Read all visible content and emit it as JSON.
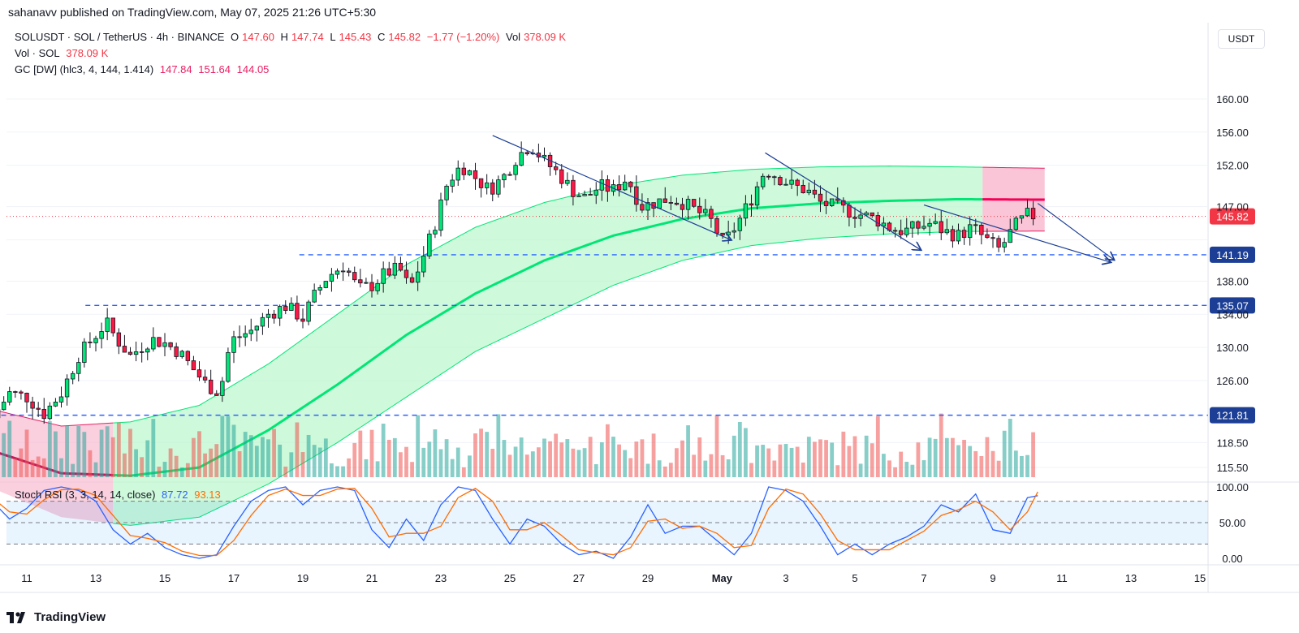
{
  "header": {
    "publisher_line": "sahanavv published on TradingView.com, May 07, 2025 21:26 UTC+5:30"
  },
  "legend": {
    "symbol": "SOLUSDT · SOL / TetherUS · 4h · BINANCE",
    "o_label": "O",
    "o": "147.60",
    "h_label": "H",
    "h": "147.74",
    "l_label": "L",
    "l": "145.43",
    "c_label": "C",
    "c": "145.82",
    "change": "−1.77 (−1.20%)",
    "vol_label": "Vol",
    "vol": "378.09 K",
    "vol_line_label": "Vol · SOL",
    "vol_line_value": "378.09 K",
    "gc_label": "GC [DW] (hlc3, 4, 144, 1.414)",
    "gc_values": [
      "147.84",
      "151.64",
      "144.05"
    ],
    "stoch_label": "Stoch RSI (3, 3, 14, 14, close)",
    "stoch_values": [
      "87.72",
      "93.13"
    ]
  },
  "price_axis_unit": "USDT",
  "branding": {
    "logo_text": "TradingView"
  },
  "colors": {
    "up": "#26a69a",
    "down": "#ef5350",
    "up_bright": "#00e676",
    "down_bright": "#ff1744",
    "band_green": "#b9f6ca",
    "band_pink": "#f8bbd0",
    "hline": "#2962ff",
    "k_line": "#2962ff",
    "d_line": "#ff6d00"
  },
  "chart_data": {
    "type": "candlestick",
    "symbol": "SOLUSDT",
    "timeframe": "4h",
    "price_axis": {
      "ticks": [
        115.5,
        118.5,
        121.81,
        126.0,
        130.0,
        134.0,
        135.07,
        138.0,
        141.19,
        145.82,
        147.0,
        152.0,
        156.0,
        160.0
      ],
      "tick_labels": [
        "115.50",
        "118.50",
        "121.81",
        "126.00",
        "130.00",
        "134.00",
        "135.07",
        "138.00",
        "141.19",
        "145.82",
        "147.00",
        "152.00",
        "156.00",
        "160.00"
      ],
      "range": [
        114.0,
        163.0
      ]
    },
    "x_axis": {
      "tick_labels": [
        "11",
        "13",
        "15",
        "17",
        "19",
        "21",
        "23",
        "25",
        "27",
        "29",
        "May",
        "3",
        "5",
        "7",
        "9",
        "11",
        "13",
        "15"
      ]
    },
    "horizontal_levels": [
      {
        "value": 141.19,
        "label": "141.19",
        "x_start": "Apr 19"
      },
      {
        "value": 135.07,
        "label": "135.07",
        "x_start": "Apr 13"
      },
      {
        "value": 121.81,
        "label": "121.81",
        "x_start": "Apr 10"
      }
    ],
    "last_price": {
      "value": 145.82,
      "label": "145.82"
    },
    "trendlines": [
      {
        "from": {
          "day": 24.5,
          "price": 155.6
        },
        "to": {
          "day": 31.4,
          "price": 143.0
        }
      },
      {
        "from": {
          "day": 32.4,
          "price": 153.5
        },
        "to": {
          "day": 36.9,
          "price": 141.8
        }
      },
      {
        "from": {
          "day": 37.0,
          "price": 147.2
        },
        "to": {
          "day": 42.4,
          "price": 140.3
        }
      }
    ],
    "close_path": [
      [
        10.0,
        121.5
      ],
      [
        10.5,
        124.5
      ],
      [
        11.0,
        124.0
      ],
      [
        11.5,
        122.0
      ],
      [
        12.0,
        124.5
      ],
      [
        12.5,
        129.0
      ],
      [
        12.9,
        131.0
      ],
      [
        13.3,
        133.0
      ],
      [
        13.6,
        131.0
      ],
      [
        14.0,
        129.0
      ],
      [
        14.3,
        130.0
      ],
      [
        14.6,
        131.0
      ],
      [
        15.0,
        130.5
      ],
      [
        15.4,
        129.5
      ],
      [
        15.8,
        127.5
      ],
      [
        16.2,
        125.5
      ],
      [
        16.6,
        124.5
      ],
      [
        16.8,
        129.0
      ],
      [
        17.0,
        131.0
      ],
      [
        17.5,
        132.0
      ],
      [
        18.0,
        134.0
      ],
      [
        18.5,
        135.0
      ],
      [
        19.0,
        133.5
      ],
      [
        19.3,
        136.0
      ],
      [
        19.7,
        138.5
      ],
      [
        20.2,
        140.0
      ],
      [
        20.6,
        137.0
      ],
      [
        21.0,
        137.5
      ],
      [
        21.4,
        139.0
      ],
      [
        21.8,
        139.5
      ],
      [
        22.1,
        137.0
      ],
      [
        22.4,
        140.0
      ],
      [
        22.8,
        144.5
      ],
      [
        23.2,
        150.0
      ],
      [
        23.6,
        152.0
      ],
      [
        24.0,
        150.5
      ],
      [
        24.4,
        149.0
      ],
      [
        24.8,
        150.5
      ],
      [
        25.2,
        153.0
      ],
      [
        25.6,
        154.5
      ],
      [
        26.0,
        152.5
      ],
      [
        26.4,
        151.0
      ],
      [
        26.8,
        149.0
      ],
      [
        27.2,
        148.0
      ],
      [
        27.6,
        149.5
      ],
      [
        28.0,
        149.0
      ],
      [
        28.4,
        150.5
      ],
      [
        28.8,
        147.0
      ],
      [
        29.2,
        147.5
      ],
      [
        29.6,
        148.0
      ],
      [
        30.0,
        147.5
      ],
      [
        30.4,
        146.5
      ],
      [
        30.8,
        145.5
      ],
      [
        31.2,
        142.5
      ],
      [
        31.6,
        145.0
      ],
      [
        32.0,
        148.0
      ],
      [
        32.4,
        151.5
      ],
      [
        32.8,
        150.5
      ],
      [
        33.2,
        149.5
      ],
      [
        33.6,
        149.0
      ],
      [
        34.0,
        147.5
      ],
      [
        34.4,
        147.0
      ],
      [
        34.8,
        146.5
      ],
      [
        35.2,
        146.0
      ],
      [
        35.6,
        145.5
      ],
      [
        36.0,
        144.5
      ],
      [
        36.4,
        144.0
      ],
      [
        36.8,
        144.5
      ],
      [
        37.2,
        145.0
      ],
      [
        37.6,
        144.0
      ],
      [
        38.0,
        143.5
      ],
      [
        38.4,
        144.5
      ],
      [
        38.8,
        143.0
      ],
      [
        39.2,
        141.8
      ],
      [
        39.6,
        144.5
      ],
      [
        40.0,
        146.0
      ],
      [
        40.3,
        145.82
      ]
    ],
    "gc_band": {
      "basis": [
        [
          10,
          117.5
        ],
        [
          12,
          114.8
        ],
        [
          14,
          114.5
        ],
        [
          16,
          115.5
        ],
        [
          18,
          120.0
        ],
        [
          20,
          125.5
        ],
        [
          22,
          131.5
        ],
        [
          24,
          136.5
        ],
        [
          26,
          140.5
        ],
        [
          28,
          143.5
        ],
        [
          30,
          145.5
        ],
        [
          32,
          146.8
        ],
        [
          34,
          147.4
        ],
        [
          36,
          147.7
        ],
        [
          38,
          147.9
        ],
        [
          40.5,
          147.84
        ]
      ],
      "upper": [
        [
          10,
          122.5
        ],
        [
          12,
          120.5
        ],
        [
          14,
          121.0
        ],
        [
          16,
          123.0
        ],
        [
          18,
          128.0
        ],
        [
          20,
          134.0
        ],
        [
          22,
          140.0
        ],
        [
          24,
          144.5
        ],
        [
          26,
          147.5
        ],
        [
          28,
          149.5
        ],
        [
          30,
          150.8
        ],
        [
          32,
          151.5
        ],
        [
          34,
          151.8
        ],
        [
          36,
          151.9
        ],
        [
          38,
          151.8
        ],
        [
          40.5,
          151.64
        ]
      ],
      "lower": [
        [
          10,
          113.0
        ],
        [
          12,
          109.5
        ],
        [
          14,
          108.5
        ],
        [
          16,
          109.5
        ],
        [
          18,
          113.5
        ],
        [
          20,
          118.5
        ],
        [
          22,
          124.0
        ],
        [
          24,
          129.5
        ],
        [
          26,
          133.5
        ],
        [
          28,
          137.5
        ],
        [
          30,
          140.5
        ],
        [
          32,
          142.3
        ],
        [
          34,
          143.2
        ],
        [
          36,
          143.7
        ],
        [
          38,
          144.0
        ],
        [
          40.5,
          144.05
        ]
      ]
    },
    "stoch_rsi": {
      "range": [
        0,
        100
      ],
      "ticks": [
        0,
        50,
        100
      ],
      "tick_labels": [
        "0.00",
        "50.00",
        "100.00"
      ],
      "band": [
        20,
        80
      ],
      "k": [
        [
          10,
          80
        ],
        [
          10.5,
          55
        ],
        [
          11,
          70
        ],
        [
          11.5,
          95
        ],
        [
          12,
          100
        ],
        [
          12.5,
          95
        ],
        [
          13,
          80
        ],
        [
          13.5,
          40
        ],
        [
          14,
          20
        ],
        [
          14.5,
          35
        ],
        [
          15,
          15
        ],
        [
          15.5,
          5
        ],
        [
          16,
          0
        ],
        [
          16.5,
          5
        ],
        [
          17,
          45
        ],
        [
          17.5,
          80
        ],
        [
          18,
          95
        ],
        [
          18.5,
          100
        ],
        [
          19,
          75
        ],
        [
          19.5,
          95
        ],
        [
          20,
          100
        ],
        [
          20.5,
          95
        ],
        [
          21,
          40
        ],
        [
          21.5,
          15
        ],
        [
          22,
          55
        ],
        [
          22.5,
          25
        ],
        [
          23,
          75
        ],
        [
          23.5,
          100
        ],
        [
          24,
          95
        ],
        [
          24.5,
          55
        ],
        [
          25,
          20
        ],
        [
          25.5,
          55
        ],
        [
          26,
          45
        ],
        [
          26.5,
          20
        ],
        [
          27,
          5
        ],
        [
          27.5,
          10
        ],
        [
          28,
          0
        ],
        [
          28.5,
          30
        ],
        [
          29,
          75
        ],
        [
          29.5,
          35
        ],
        [
          30,
          45
        ],
        [
          30.5,
          45
        ],
        [
          31,
          25
        ],
        [
          31.5,
          5
        ],
        [
          32,
          35
        ],
        [
          32.5,
          100
        ],
        [
          33,
          95
        ],
        [
          33.5,
          80
        ],
        [
          34,
          45
        ],
        [
          34.5,
          5
        ],
        [
          35,
          20
        ],
        [
          35.5,
          5
        ],
        [
          36,
          20
        ],
        [
          36.5,
          30
        ],
        [
          37,
          45
        ],
        [
          37.5,
          75
        ],
        [
          38,
          65
        ],
        [
          38.5,
          90
        ],
        [
          39,
          40
        ],
        [
          39.5,
          35
        ],
        [
          40,
          85
        ],
        [
          40.3,
          87.72
        ]
      ],
      "d": [
        [
          10,
          85
        ],
        [
          10.5,
          65
        ],
        [
          11,
          62
        ],
        [
          11.5,
          82
        ],
        [
          12,
          96
        ],
        [
          12.5,
          97
        ],
        [
          13,
          88
        ],
        [
          13.5,
          60
        ],
        [
          14,
          32
        ],
        [
          14.5,
          28
        ],
        [
          15,
          22
        ],
        [
          15.5,
          10
        ],
        [
          16,
          4
        ],
        [
          16.5,
          4
        ],
        [
          17,
          25
        ],
        [
          17.5,
          60
        ],
        [
          18,
          88
        ],
        [
          18.5,
          97
        ],
        [
          19,
          88
        ],
        [
          19.5,
          88
        ],
        [
          20,
          97
        ],
        [
          20.5,
          98
        ],
        [
          21,
          70
        ],
        [
          21.5,
          30
        ],
        [
          22,
          35
        ],
        [
          22.5,
          35
        ],
        [
          23,
          45
        ],
        [
          23.5,
          85
        ],
        [
          24,
          98
        ],
        [
          24.5,
          80
        ],
        [
          25,
          40
        ],
        [
          25.5,
          40
        ],
        [
          26,
          50
        ],
        [
          26.5,
          32
        ],
        [
          27,
          12
        ],
        [
          27.5,
          8
        ],
        [
          28,
          5
        ],
        [
          28.5,
          15
        ],
        [
          29,
          52
        ],
        [
          29.5,
          55
        ],
        [
          30,
          42
        ],
        [
          30.5,
          45
        ],
        [
          31,
          35
        ],
        [
          31.5,
          15
        ],
        [
          32,
          18
        ],
        [
          32.5,
          70
        ],
        [
          33,
          97
        ],
        [
          33.5,
          90
        ],
        [
          34,
          62
        ],
        [
          34.5,
          25
        ],
        [
          35,
          12
        ],
        [
          35.5,
          12
        ],
        [
          36,
          12
        ],
        [
          36.5,
          25
        ],
        [
          37,
          38
        ],
        [
          37.5,
          60
        ],
        [
          38,
          68
        ],
        [
          38.5,
          80
        ],
        [
          39,
          65
        ],
        [
          39.5,
          40
        ],
        [
          40,
          65
        ],
        [
          40.3,
          93.13
        ]
      ]
    },
    "series": [
      {
        "name": "Vol · SOL",
        "last": "378.09 K"
      },
      {
        "name": "GC [DW] (hlc3, 4, 144, 1.414)",
        "values": [
          147.84,
          151.64,
          144.05
        ]
      },
      {
        "name": "Stoch RSI (3, 3, 14, 14, close)",
        "values": [
          87.72,
          93.13
        ]
      }
    ]
  }
}
